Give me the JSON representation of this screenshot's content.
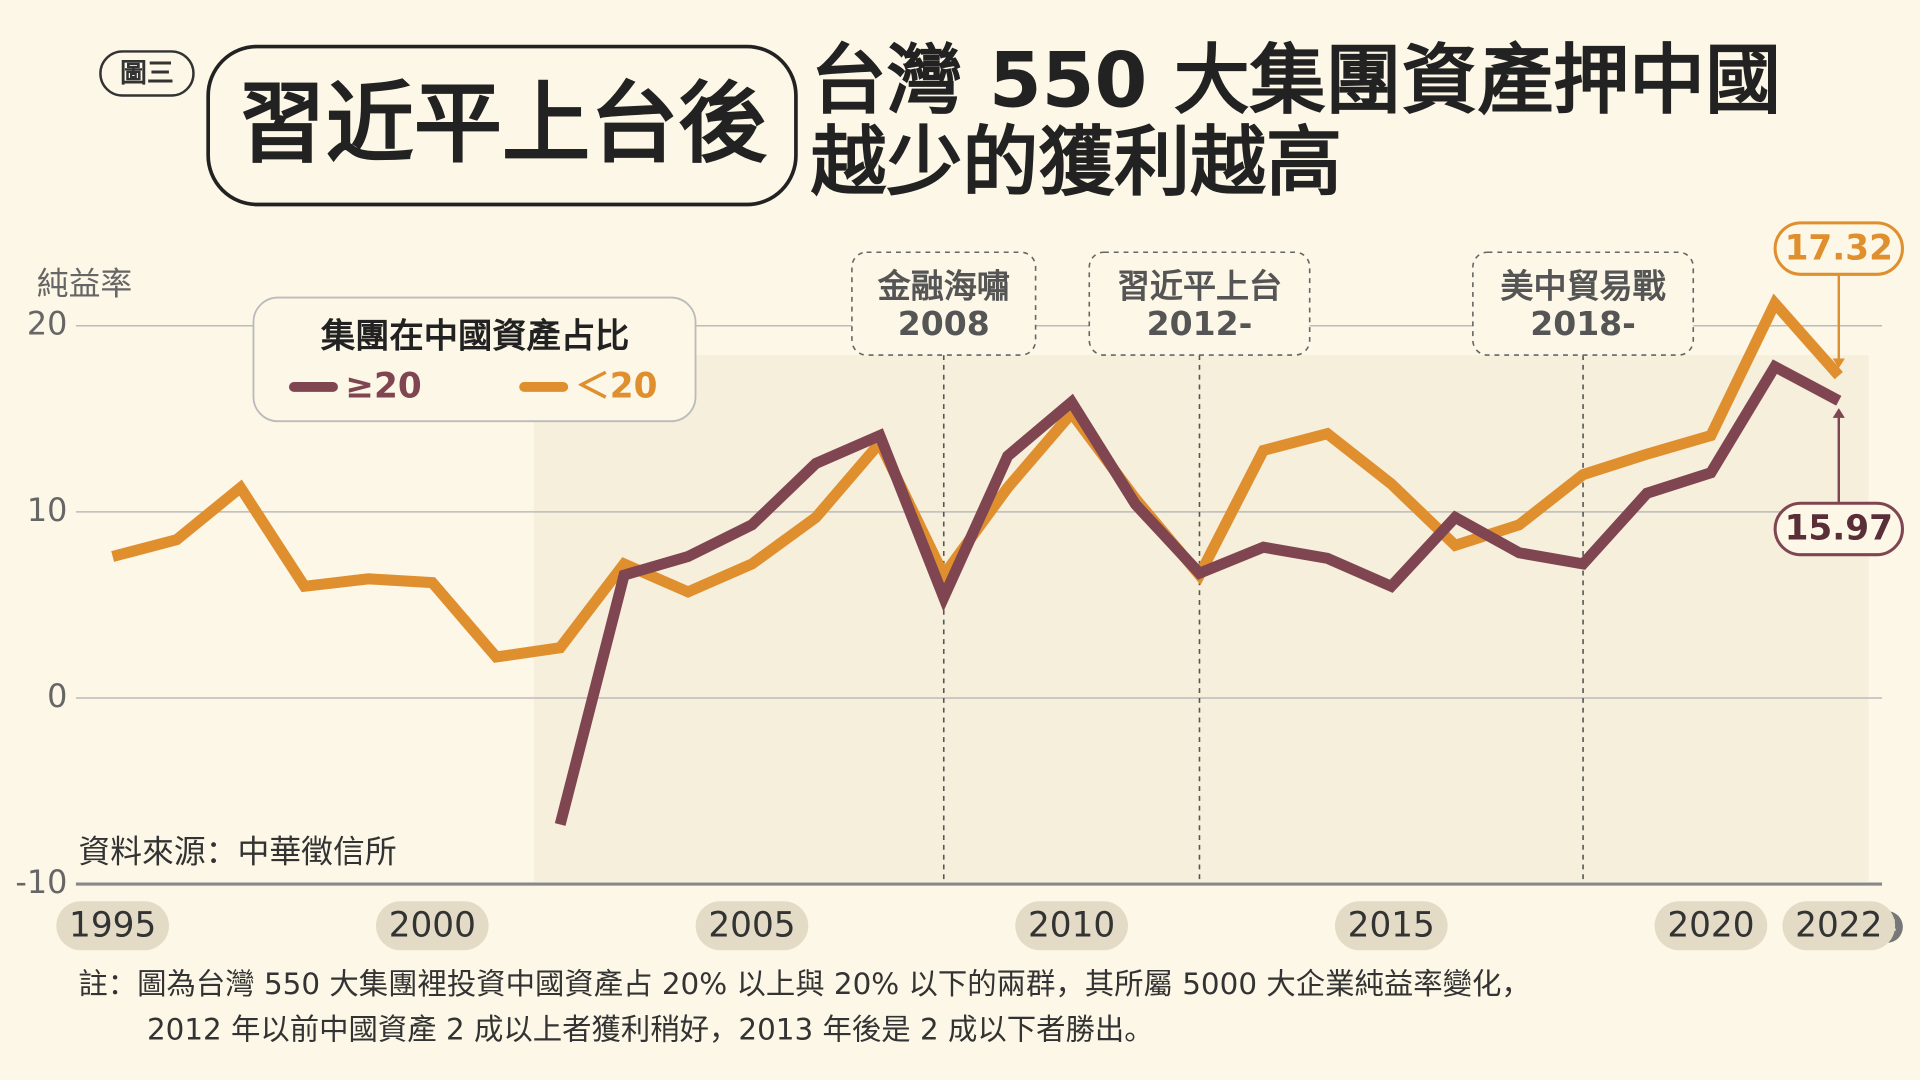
{
  "chart_data": {
    "type": "line",
    "badge": "圖三",
    "headline": "習近平上台後",
    "title_lines": [
      "台灣 550 大集團資產押中國",
      "越少的獲利越高"
    ],
    "ylabel": "純益率",
    "xunit": "年",
    "legend_title": "集團在中國資產占比",
    "source": "資料來源：中華徵信所",
    "notes": [
      "註：圖為台灣 550 大集團裡投資中國資產占 20% 以上與 20% 以下的兩群，其所屬 5000 大企業純益率變化，",
      "2012 年以前中國資產 2 成以上者獲利稍好，2013 年後是 2 成以下者勝出。"
    ],
    "x": [
      1995,
      1996,
      1997,
      1998,
      1999,
      2000,
      2001,
      2002,
      2003,
      2004,
      2005,
      2006,
      2007,
      2008,
      2009,
      2010,
      2011,
      2012,
      2013,
      2014,
      2015,
      2016,
      2017,
      2018,
      2019,
      2020,
      2021,
      2022
    ],
    "series": [
      {
        "name": "≥20",
        "color": "#7f4652",
        "values": [
          null,
          null,
          null,
          null,
          null,
          null,
          null,
          -6.8,
          6.6,
          7.6,
          9.3,
          12.6,
          14.1,
          5.4,
          13.0,
          15.9,
          10.4,
          6.7,
          8.1,
          7.5,
          6.0,
          9.7,
          7.8,
          7.2,
          11.0,
          12.1,
          17.8,
          15.97
        ]
      },
      {
        "name": "＜20",
        "color": "#e08f2e",
        "values": [
          7.6,
          8.5,
          11.3,
          6.0,
          6.4,
          6.2,
          2.2,
          2.7,
          7.2,
          5.7,
          7.2,
          9.7,
          13.7,
          6.6,
          11.3,
          15.3,
          10.7,
          6.6,
          13.3,
          14.2,
          11.5,
          8.2,
          9.3,
          12.0,
          13.1,
          14.1,
          21.2,
          17.32
        ]
      }
    ],
    "annotations": [
      {
        "x": 2008,
        "lines": [
          "金融海嘯",
          "2008"
        ]
      },
      {
        "x": 2012,
        "lines": [
          "習近平上台",
          "2012-"
        ]
      },
      {
        "x": 2018,
        "lines": [
          "美中貿易戰",
          "2018-"
        ]
      }
    ],
    "xlim": [
      1994.5,
      2022.6
    ],
    "xticks": [
      1995,
      2000,
      2005,
      2010,
      2015,
      2020,
      2022
    ],
    "ylim": [
      -10,
      24
    ],
    "yticks": [
      -10,
      0,
      10,
      20
    ],
    "grid": true
  }
}
